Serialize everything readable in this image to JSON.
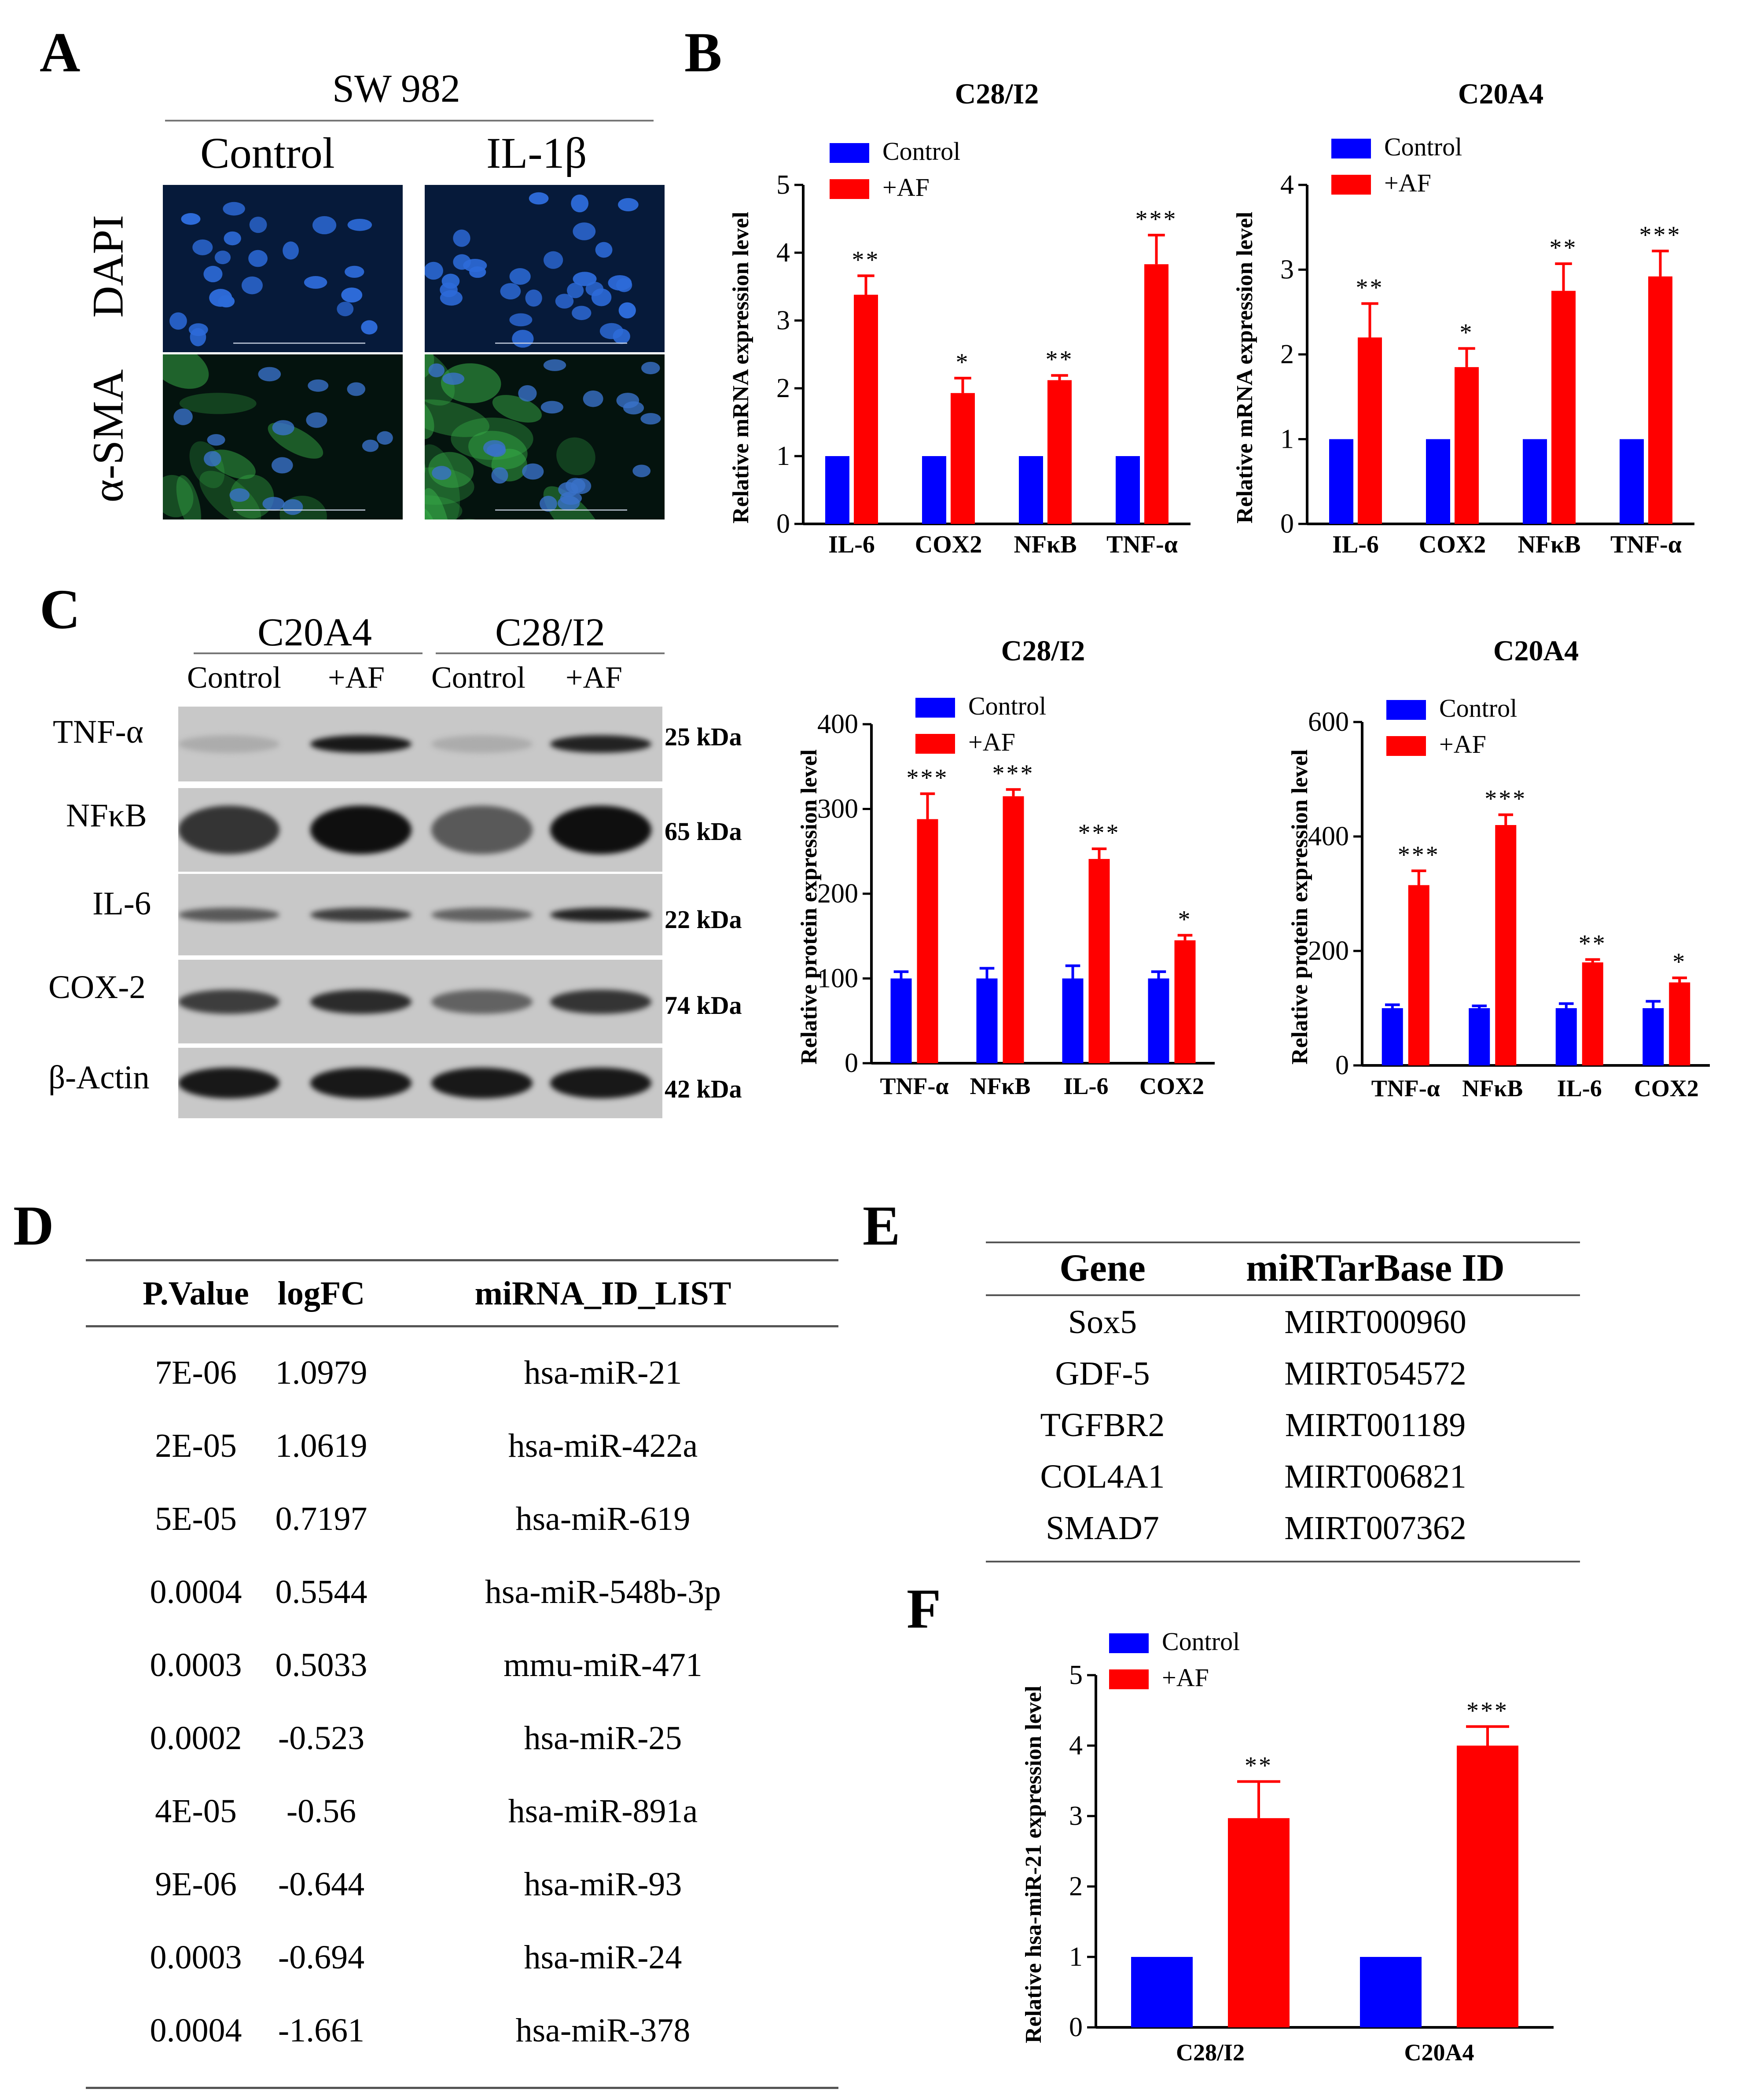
{
  "panels": {
    "A": "A",
    "B": "B",
    "C": "C",
    "D": "D",
    "E": "E",
    "F": "F"
  },
  "panelA": {
    "cell_line": "SW 982",
    "col_labels": [
      "Control",
      "IL-1β"
    ],
    "row_labels": [
      "DAPI",
      "α-SMA"
    ]
  },
  "panelC_blot": {
    "groups": [
      "C20A4",
      "C28/I2"
    ],
    "lanes": [
      "Control",
      "+AF",
      "Control",
      "+AF"
    ],
    "proteins": [
      "TNF-α",
      "NFκB",
      "IL-6",
      "COX-2",
      "β-Actin"
    ],
    "sizes": [
      "25 kDa",
      "65 kDa",
      "22 kDa",
      "74 kDa",
      "42 kDa"
    ]
  },
  "tableD": {
    "headers": [
      "P.Value",
      "logFC",
      "miRNA_ID_LIST"
    ],
    "rows": [
      [
        "7E-06",
        "1.0979",
        "hsa-miR-21"
      ],
      [
        "2E-05",
        "1.0619",
        "hsa-miR-422a"
      ],
      [
        "5E-05",
        "0.7197",
        "hsa-miR-619"
      ],
      [
        "0.0004",
        "0.5544",
        "hsa-miR-548b-3p"
      ],
      [
        "0.0003",
        "0.5033",
        "mmu-miR-471"
      ],
      [
        "0.0002",
        "-0.523",
        "hsa-miR-25"
      ],
      [
        "4E-05",
        "-0.56",
        "hsa-miR-891a"
      ],
      [
        "9E-06",
        "-0.644",
        "hsa-miR-93"
      ],
      [
        "0.0003",
        "-0.694",
        "hsa-miR-24"
      ],
      [
        "0.0004",
        "-1.661",
        "hsa-miR-378"
      ]
    ]
  },
  "tableE": {
    "headers": [
      "Gene",
      "miRTarBase ID"
    ],
    "rows": [
      [
        "Sox5",
        "MIRT000960"
      ],
      [
        "GDF-5",
        "MIRT054572"
      ],
      [
        "TGFBR2",
        "MIRT001189"
      ],
      [
        "COL4A1",
        "MIRT006821"
      ],
      [
        "SMAD7",
        "MIRT007362"
      ]
    ]
  },
  "colors": {
    "control": "#0000ff",
    "af": "#ff0000"
  },
  "chart_data": [
    {
      "id": "B1",
      "type": "bar",
      "title": "C28/I2",
      "ylabel": "Relative mRNA expression level",
      "ylim": [
        0,
        5
      ],
      "yticks": [
        0,
        1,
        2,
        3,
        4,
        5
      ],
      "categories": [
        "IL-6",
        "COX2",
        "NFκB",
        "TNF-α"
      ],
      "series": [
        {
          "name": "Control",
          "values": [
            1,
            1,
            1,
            1
          ],
          "errors": [
            0,
            0,
            0,
            0
          ],
          "sig": [
            "",
            "",
            "",
            ""
          ]
        },
        {
          "name": "+AF",
          "values": [
            3.38,
            1.93,
            2.12,
            3.83
          ],
          "errors": [
            0.28,
            0.22,
            0.07,
            0.43
          ],
          "sig": [
            "**",
            "*",
            "**",
            "***"
          ]
        }
      ]
    },
    {
      "id": "B2",
      "type": "bar",
      "title": "C20A4",
      "ylabel": "Relative mRNA expression level",
      "ylim": [
        0,
        4
      ],
      "yticks": [
        0,
        1,
        2,
        3,
        4
      ],
      "categories": [
        "IL-6",
        "COX2",
        "NFκB",
        "TNF-α"
      ],
      "series": [
        {
          "name": "Control",
          "values": [
            1,
            1,
            1,
            1
          ],
          "errors": [
            0,
            0,
            0,
            0
          ],
          "sig": [
            "",
            "",
            "",
            ""
          ]
        },
        {
          "name": "+AF",
          "values": [
            2.2,
            1.85,
            2.75,
            2.92
          ],
          "errors": [
            0.4,
            0.22,
            0.32,
            0.3
          ],
          "sig": [
            "**",
            "*",
            "**",
            "***"
          ]
        }
      ]
    },
    {
      "id": "C1",
      "type": "bar",
      "title": "C28/I2",
      "ylabel": "Relative protein expression level",
      "ylim": [
        0,
        400
      ],
      "yticks": [
        0,
        100,
        200,
        300,
        400
      ],
      "categories": [
        "TNF-α",
        "NFκB",
        "IL-6",
        "COX2"
      ],
      "series": [
        {
          "name": "Control",
          "values": [
            100,
            100,
            100,
            100
          ],
          "errors": [
            8,
            12,
            15,
            8
          ],
          "sig": [
            "",
            "",
            "",
            ""
          ]
        },
        {
          "name": "+AF",
          "values": [
            288,
            315,
            241,
            145
          ],
          "errors": [
            30,
            8,
            12,
            6
          ],
          "sig": [
            "***",
            "***",
            "***",
            "*"
          ]
        }
      ]
    },
    {
      "id": "C2",
      "type": "bar",
      "title": "C20A4",
      "ylabel": "Relative protein expression level",
      "ylim": [
        0,
        600
      ],
      "yticks": [
        0,
        200,
        400,
        600
      ],
      "categories": [
        "TNF-α",
        "NFκB",
        "IL-6",
        "COX2"
      ],
      "series": [
        {
          "name": "Control",
          "values": [
            100,
            100,
            100,
            100
          ],
          "errors": [
            6,
            4,
            8,
            12
          ],
          "sig": [
            "",
            "",
            "",
            ""
          ]
        },
        {
          "name": "+AF",
          "values": [
            315,
            420,
            180,
            145
          ],
          "errors": [
            25,
            18,
            5,
            8
          ],
          "sig": [
            "***",
            "***",
            "**",
            "*"
          ]
        }
      ]
    },
    {
      "id": "F",
      "type": "bar",
      "title": "",
      "ylabel": "Relative hsa-miR-21 expression level",
      "ylim": [
        0,
        5
      ],
      "yticks": [
        0,
        1,
        2,
        3,
        4,
        5
      ],
      "categories": [
        "C28/I2",
        "C20A4"
      ],
      "series": [
        {
          "name": "Control",
          "values": [
            1,
            1
          ],
          "errors": [
            0,
            0
          ],
          "sig": [
            "",
            ""
          ]
        },
        {
          "name": "+AF",
          "values": [
            2.97,
            4.0
          ],
          "errors": [
            0.52,
            0.27
          ],
          "sig": [
            "**",
            "***"
          ]
        }
      ]
    }
  ]
}
